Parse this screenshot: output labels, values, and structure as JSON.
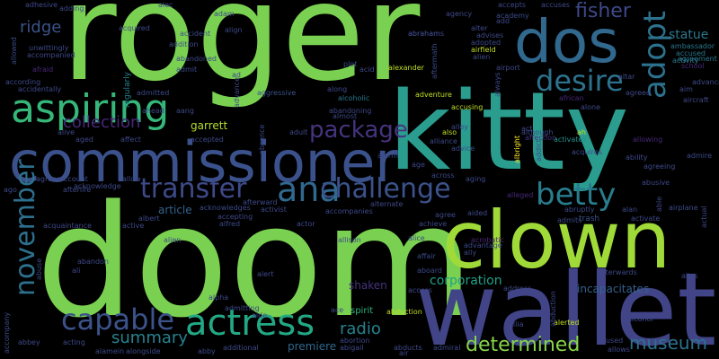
{
  "title": "word cloud",
  "words": [
    {
      "text": "roger",
      "color": "#7ad151"
    },
    {
      "text": "kitty",
      "color": "#2a9d8f"
    },
    {
      "text": "doom",
      "color": "#7ad151"
    },
    {
      "text": "wallet",
      "color": "#414487"
    },
    {
      "text": "commissioner",
      "color": "#3b518b"
    },
    {
      "text": "clown",
      "color": "#a0da39"
    },
    {
      "text": "dos",
      "color": "#31688e"
    },
    {
      "text": "aspiring",
      "color": "#35b779"
    },
    {
      "text": "desire",
      "color": "#2c728e"
    },
    {
      "text": "adopt",
      "color": "#2c728e"
    },
    {
      "text": "actress",
      "color": "#22a884"
    },
    {
      "text": "ana",
      "color": "#31688e"
    },
    {
      "text": "challenge",
      "color": "#3b528b"
    },
    {
      "text": "transfer",
      "color": "#3e4a89"
    },
    {
      "text": "betty",
      "color": "#287d8e"
    },
    {
      "text": "capable",
      "color": "#3b528b"
    },
    {
      "text": "november",
      "color": "#2d708e"
    },
    {
      "text": "fisher",
      "color": "#3e4989"
    },
    {
      "text": "package",
      "color": "#46337e"
    },
    {
      "text": "collection",
      "color": "#482878"
    },
    {
      "text": "museum",
      "color": "#2c728e"
    },
    {
      "text": "determined",
      "color": "#86d549"
    },
    {
      "text": "summary",
      "color": "#26828e"
    },
    {
      "text": "ridge",
      "color": "#3b528b"
    },
    {
      "text": "radio",
      "color": "#26828e"
    },
    {
      "text": "corporation",
      "color": "#1fa187"
    },
    {
      "text": "statue",
      "color": "#2a788e"
    },
    {
      "text": "garrett",
      "color": "#b5de2b"
    },
    {
      "text": "article",
      "color": "#33638d"
    },
    {
      "text": "shaken",
      "color": "#46337e"
    },
    {
      "text": "incapacitates",
      "color": "#34618d"
    },
    {
      "text": "premiere",
      "color": "#31688e"
    },
    {
      "text": "spirit",
      "color": "#2db27d"
    },
    {
      "text": "trash",
      "color": "#3b528b"
    },
    {
      "text": "regularly",
      "color": "#25838e"
    },
    {
      "text": "aggressive",
      "color": "#3b528b"
    },
    {
      "text": "alcoholic",
      "color": "#2a788e"
    },
    {
      "text": "abandoning",
      "color": "#3e4989"
    },
    {
      "text": "accused",
      "color": "#2a788e"
    },
    {
      "text": "agreement",
      "color": "#2a788e"
    },
    {
      "text": "ambassador",
      "color": "#2a788e"
    },
    {
      "text": "activity",
      "color": "#2a788e"
    },
    {
      "text": "acrobatic",
      "color": "#482878"
    },
    {
      "text": "alleged",
      "color": "#482878"
    },
    {
      "text": "affection",
      "color": "#46337e"
    },
    {
      "text": "activates",
      "color": "#21918c"
    },
    {
      "text": "albright",
      "color": "#fde725"
    },
    {
      "text": "alien",
      "color": "#3e4989"
    },
    {
      "text": "airport",
      "color": "#3e4989"
    },
    {
      "text": "abrahams",
      "color": "#3e4989"
    },
    {
      "text": "alter",
      "color": "#3e4989"
    },
    {
      "text": "adopted",
      "color": "#3e4989"
    },
    {
      "text": "advises",
      "color": "#3e4989"
    },
    {
      "text": "airfield",
      "color": "#c2df23"
    },
    {
      "text": "academy",
      "color": "#3e4989"
    },
    {
      "text": "add",
      "color": "#3e4989"
    },
    {
      "text": "accepts",
      "color": "#3e4989"
    },
    {
      "text": "accuses",
      "color": "#3e4989"
    },
    {
      "text": "agency",
      "color": "#3e4989"
    },
    {
      "text": "adam",
      "color": "#3e4989"
    },
    {
      "text": "alec",
      "color": "#3e4989"
    },
    {
      "text": "adding",
      "color": "#3e4989"
    },
    {
      "text": "adult",
      "color": "#3e4989"
    },
    {
      "text": "adhesive",
      "color": "#3e4989"
    },
    {
      "text": "allowed",
      "color": "#3e4989"
    },
    {
      "text": "unwittingly",
      "color": "#3e4989"
    },
    {
      "text": "accompanied",
      "color": "#3e4989"
    },
    {
      "text": "afraid",
      "color": "#482878"
    },
    {
      "text": "according",
      "color": "#3e4989"
    },
    {
      "text": "accidentally",
      "color": "#3e4989"
    },
    {
      "text": "acquired",
      "color": "#3e4989"
    },
    {
      "text": "accident",
      "color": "#3e4989"
    },
    {
      "text": "addition",
      "color": "#3e4989"
    },
    {
      "text": "abandoned",
      "color": "#3e4989"
    },
    {
      "text": "admit",
      "color": "#3e4989"
    },
    {
      "text": "admitted",
      "color": "#3e4989"
    },
    {
      "text": "align",
      "color": "#3e4989"
    },
    {
      "text": "ad",
      "color": "#3e4989"
    },
    {
      "text": "along",
      "color": "#3e4989"
    },
    {
      "text": "plot",
      "color": "#3e4989"
    },
    {
      "text": "acid",
      "color": "#3e4989"
    },
    {
      "text": "alexander",
      "color": "#c2df23"
    },
    {
      "text": "aftermath",
      "color": "#3e4989"
    },
    {
      "text": "abraham",
      "color": "#3e4989"
    },
    {
      "text": "always",
      "color": "#3e4989"
    },
    {
      "text": "accusing",
      "color": "#c2df23"
    },
    {
      "text": "adventure",
      "color": "#c2df23"
    },
    {
      "text": "alley",
      "color": "#3e4989"
    },
    {
      "text": "act",
      "color": "#3e4989"
    },
    {
      "text": "also",
      "color": "#c2df23"
    },
    {
      "text": "although",
      "color": "#3e4989"
    },
    {
      "text": "ah",
      "color": "#c2df23"
    },
    {
      "text": "alone",
      "color": "#3e4989"
    },
    {
      "text": "altar",
      "color": "#3e4989"
    },
    {
      "text": "agreed",
      "color": "#3e4989"
    },
    {
      "text": "african",
      "color": "#482878"
    },
    {
      "text": "ability",
      "color": "#3e4989"
    },
    {
      "text": "agreeing",
      "color": "#3e4989"
    },
    {
      "text": "allowing",
      "color": "#482878"
    },
    {
      "text": "advanced",
      "color": "#3e4989"
    },
    {
      "text": "aircraft",
      "color": "#3e4989"
    },
    {
      "text": "school",
      "color": "#482878"
    },
    {
      "text": "aim",
      "color": "#3e4989"
    },
    {
      "text": "abusive",
      "color": "#3e4989"
    },
    {
      "text": "airplane",
      "color": "#3e4989"
    },
    {
      "text": "actual",
      "color": "#3e4989"
    },
    {
      "text": "able",
      "color": "#3e4989"
    },
    {
      "text": "alan",
      "color": "#3e4989"
    },
    {
      "text": "abruptly",
      "color": "#3e4989"
    },
    {
      "text": "activate",
      "color": "#3e4989"
    },
    {
      "text": "admits",
      "color": "#3e4989"
    },
    {
      "text": "afterwards",
      "color": "#3e4989"
    },
    {
      "text": "alias",
      "color": "#3e4989"
    },
    {
      "text": "aid",
      "color": "#3e4989"
    },
    {
      "text": "abused",
      "color": "#3e4989"
    },
    {
      "text": "alcohol",
      "color": "#3e4989"
    },
    {
      "text": "allows",
      "color": "#3e4989"
    },
    {
      "text": "alerted",
      "color": "#c2df23"
    },
    {
      "text": "abduction",
      "color": "#3e4989"
    },
    {
      "text": "allia",
      "color": "#3e4989"
    },
    {
      "text": "address",
      "color": "#3e4989"
    },
    {
      "text": "access",
      "color": "#3e4989"
    },
    {
      "text": "abduction",
      "color": "#c2df23"
    },
    {
      "text": "admiral",
      "color": "#3e4989"
    },
    {
      "text": "abducts",
      "color": "#3e4989"
    },
    {
      "text": "air",
      "color": "#3e4989"
    },
    {
      "text": "abigail",
      "color": "#3e4989"
    },
    {
      "text": "abortion",
      "color": "#3e4989"
    },
    {
      "text": "ace",
      "color": "#3e4989"
    },
    {
      "text": "allison",
      "color": "#3e4989"
    },
    {
      "text": "aboard",
      "color": "#3e4989"
    },
    {
      "text": "affair",
      "color": "#3e4989"
    },
    {
      "text": "ally",
      "color": "#3e4989"
    },
    {
      "text": "advantage",
      "color": "#3e4989"
    },
    {
      "text": "aided",
      "color": "#3e4989"
    },
    {
      "text": "achieve",
      "color": "#3e4989"
    },
    {
      "text": "agree",
      "color": "#3e4989"
    },
    {
      "text": "alice",
      "color": "#3e4989"
    },
    {
      "text": "alert",
      "color": "#3e4989"
    },
    {
      "text": "alpha",
      "color": "#3e4989"
    },
    {
      "text": "admitting",
      "color": "#3e4989"
    },
    {
      "text": "aide",
      "color": "#3e4989"
    },
    {
      "text": "additional",
      "color": "#3e4989"
    },
    {
      "text": "abby",
      "color": "#3e4989"
    },
    {
      "text": "alongside",
      "color": "#3e4989"
    },
    {
      "text": "alamein",
      "color": "#3e4989"
    },
    {
      "text": "acting",
      "color": "#3e4989"
    },
    {
      "text": "abbey",
      "color": "#3e4989"
    },
    {
      "text": "accompany",
      "color": "#3e4989"
    },
    {
      "text": "abuse",
      "color": "#3e4989"
    },
    {
      "text": "ali",
      "color": "#3e4989"
    },
    {
      "text": "abandon",
      "color": "#3e4989"
    },
    {
      "text": "alien",
      "color": "#3e4989"
    },
    {
      "text": "active",
      "color": "#3e4989"
    },
    {
      "text": "albert",
      "color": "#3e4989"
    },
    {
      "text": "alfred",
      "color": "#3e4989"
    },
    {
      "text": "accepting",
      "color": "#3e4989"
    },
    {
      "text": "acknowledges",
      "color": "#3e4989"
    },
    {
      "text": "activist",
      "color": "#3e4989"
    },
    {
      "text": "afterward",
      "color": "#3e4989"
    },
    {
      "text": "actor",
      "color": "#3e4989"
    },
    {
      "text": "accompanies",
      "color": "#3e4989"
    },
    {
      "text": "alternate",
      "color": "#3e4989"
    },
    {
      "text": "alliance",
      "color": "#3e4989"
    },
    {
      "text": "across",
      "color": "#3e4989"
    },
    {
      "text": "aging",
      "color": "#3e4989"
    },
    {
      "text": "addict",
      "color": "#3e4989"
    },
    {
      "text": "acquires",
      "color": "#3e4989"
    },
    {
      "text": "acquaintance",
      "color": "#3e4989"
    },
    {
      "text": "afterlife",
      "color": "#3e4989"
    },
    {
      "text": "acknowledge",
      "color": "#3e4989"
    },
    {
      "text": "account",
      "color": "#3e4989"
    },
    {
      "text": "agrees",
      "color": "#3e4989"
    },
    {
      "text": "ago",
      "color": "#3e4989"
    },
    {
      "text": "allow",
      "color": "#3e4989"
    },
    {
      "text": "aged",
      "color": "#3e4989"
    },
    {
      "text": "affect",
      "color": "#3e4989"
    },
    {
      "text": "alive",
      "color": "#3e4989"
    },
    {
      "text": "ahead",
      "color": "#3e4989"
    },
    {
      "text": "accepted",
      "color": "#3e4989"
    },
    {
      "text": "absence",
      "color": "#3e4989"
    },
    {
      "text": "alarm",
      "color": "#3e4989"
    },
    {
      "text": "advice",
      "color": "#3e4989"
    },
    {
      "text": "age",
      "color": "#3e4989"
    },
    {
      "text": "almost",
      "color": "#3e4989"
    },
    {
      "text": "advance",
      "color": "#3e4989"
    },
    {
      "text": "aang",
      "color": "#3e4989"
    },
    {
      "text": "admire",
      "color": "#3e4989"
    }
  ]
}
